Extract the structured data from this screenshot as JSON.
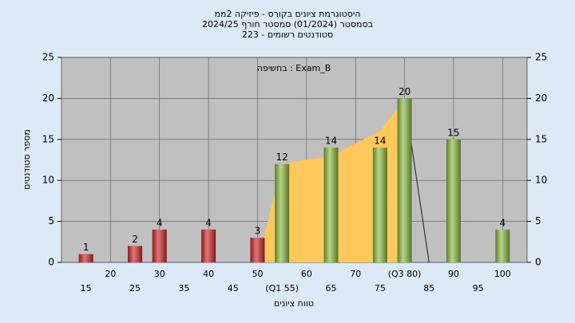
{
  "chart_data": {
    "type": "bar",
    "title": [
      "היסטוגרמת ציונים בקורס - פיזיקה 2ממ",
      "בסמסטר  (01/2024)  סמסטר חורף 2024/25",
      "סטודנטים רשומים - 223"
    ],
    "annotation": "בחשיפה : Exam_B",
    "xlabel": "טווח ציונים",
    "ylabel": "מספר סטודנטים",
    "categories": [
      "15",
      "20",
      "25",
      "30",
      "35",
      "40",
      "45",
      "50",
      "(Q1 55)",
      "60",
      "65",
      "70",
      "75",
      "(Q3 80)",
      "85",
      "90",
      "95",
      "100"
    ],
    "values": [
      1,
      0,
      2,
      4,
      0,
      4,
      0,
      3,
      12,
      0,
      14,
      0,
      14,
      20,
      0,
      15,
      0,
      4
    ],
    "colors": [
      "#d42a2a",
      "#d42a2a",
      "#d42a2a",
      "#d42a2a",
      "#d42a2a",
      "#d42a2a",
      "#d42a2a",
      "#d42a2a",
      "#8fc043",
      "#8fc043",
      "#8fc043",
      "#8fc043",
      "#8fc043",
      "#8fc043",
      "#8fc043",
      "#8fc043",
      "#8fc043",
      "#8fc043"
    ],
    "area": {
      "color": "#ffc85a",
      "values": [
        null,
        null,
        null,
        null,
        null,
        null,
        null,
        0,
        12,
        12.5,
        13,
        14.5,
        16,
        20,
        null,
        null,
        null,
        null
      ]
    },
    "line": {
      "color": "#333333",
      "values": [
        null,
        null,
        null,
        null,
        null,
        null,
        null,
        null,
        null,
        null,
        null,
        null,
        null,
        20,
        0,
        null,
        null,
        null
      ]
    },
    "ylim": [
      0,
      25
    ],
    "yticks": [
      0,
      5,
      10,
      15,
      20,
      25
    ],
    "y2lim": [
      0,
      25
    ],
    "y2ticks": [
      0,
      5,
      10,
      15,
      20,
      25
    ],
    "grid": true
  }
}
